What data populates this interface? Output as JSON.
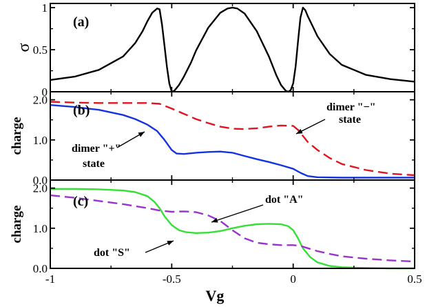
{
  "chart_data": {
    "type": "line",
    "xlabel": "Vg",
    "xlim": [
      -1,
      0.5
    ],
    "xticks": [
      "-1",
      "-0.5",
      "0",
      "0.5"
    ],
    "panels": [
      {
        "label": "(a)",
        "ylabel": "σ",
        "ylim": [
          0,
          1.05
        ],
        "yticks": [
          "0",
          "0.5",
          "1"
        ],
        "series": [
          {
            "color": "#000000",
            "dash": "solid",
            "x": [
              -1.0,
              -0.9,
              -0.8,
              -0.7,
              -0.65,
              -0.62,
              -0.6,
              -0.58,
              -0.56,
              -0.55,
              -0.54,
              -0.53,
              -0.52,
              -0.51,
              -0.5,
              -0.49,
              -0.47,
              -0.45,
              -0.42,
              -0.4,
              -0.35,
              -0.3,
              -0.27,
              -0.25,
              -0.23,
              -0.2,
              -0.15,
              -0.1,
              -0.07,
              -0.05,
              -0.03,
              -0.02,
              -0.01,
              0.0,
              0.01,
              0.02,
              0.03,
              0.04,
              0.05,
              0.06,
              0.08,
              0.1,
              0.15,
              0.2,
              0.3,
              0.4,
              0.5
            ],
            "y": [
              0.14,
              0.18,
              0.26,
              0.42,
              0.58,
              0.72,
              0.84,
              0.94,
              0.99,
              0.98,
              0.8,
              0.55,
              0.3,
              0.1,
              0.0,
              0.01,
              0.08,
              0.18,
              0.35,
              0.49,
              0.76,
              0.94,
              0.99,
              1.0,
              0.99,
              0.93,
              0.72,
              0.42,
              0.2,
              0.08,
              0.01,
              0.0,
              0.02,
              0.1,
              0.3,
              0.6,
              0.88,
              1.0,
              0.97,
              0.9,
              0.78,
              0.66,
              0.45,
              0.32,
              0.2,
              0.15,
              0.12
            ]
          }
        ]
      },
      {
        "label": "(b)",
        "ylabel": "charge",
        "ylim": [
          0,
          2.2
        ],
        "yticks": [
          "0.0",
          "1.0",
          "2.0"
        ],
        "series": [
          {
            "color": "#e0141e",
            "dash": "dashed",
            "x": [
              -1.0,
              -0.9,
              -0.8,
              -0.7,
              -0.6,
              -0.55,
              -0.5,
              -0.45,
              -0.4,
              -0.35,
              -0.3,
              -0.25,
              -0.2,
              -0.15,
              -0.1,
              -0.05,
              0.0,
              0.02,
              0.04,
              0.06,
              0.1,
              0.15,
              0.2,
              0.3,
              0.4,
              0.5
            ],
            "y": [
              1.95,
              1.93,
              1.92,
              1.92,
              1.92,
              1.9,
              1.78,
              1.65,
              1.52,
              1.42,
              1.33,
              1.28,
              1.27,
              1.29,
              1.33,
              1.36,
              1.35,
              1.25,
              1.1,
              0.95,
              0.75,
              0.55,
              0.4,
              0.25,
              0.16,
              0.12
            ]
          },
          {
            "color": "#1432e0",
            "dash": "solid",
            "x": [
              -1.0,
              -0.9,
              -0.8,
              -0.7,
              -0.65,
              -0.6,
              -0.56,
              -0.53,
              -0.5,
              -0.48,
              -0.45,
              -0.4,
              -0.35,
              -0.3,
              -0.25,
              -0.2,
              -0.15,
              -0.1,
              -0.05,
              0.0,
              0.03,
              0.06,
              0.1,
              0.2,
              0.3,
              0.4,
              0.5
            ],
            "y": [
              1.87,
              1.82,
              1.75,
              1.62,
              1.52,
              1.38,
              1.22,
              1.0,
              0.75,
              0.66,
              0.65,
              0.68,
              0.7,
              0.71,
              0.68,
              0.6,
              0.52,
              0.45,
              0.37,
              0.28,
              0.18,
              0.1,
              0.07,
              0.06,
              0.06,
              0.06,
              0.06
            ]
          }
        ],
        "annotations": [
          {
            "lines": [
              "dimer \"+\"",
              "state"
            ]
          },
          {
            "lines": [
              "dimer \"−\"",
              "state"
            ]
          }
        ]
      },
      {
        "label": "(c)",
        "ylabel": "charge",
        "ylim": [
          0,
          2.2
        ],
        "yticks": [
          "0.0",
          "1.0",
          "2.0"
        ],
        "series": [
          {
            "color": "#33e033",
            "dash": "solid",
            "x": [
              -1.0,
              -0.9,
              -0.8,
              -0.7,
              -0.65,
              -0.6,
              -0.57,
              -0.55,
              -0.53,
              -0.5,
              -0.47,
              -0.44,
              -0.4,
              -0.35,
              -0.3,
              -0.25,
              -0.2,
              -0.15,
              -0.1,
              -0.05,
              -0.02,
              0.0,
              0.02,
              0.04,
              0.07,
              0.1,
              0.15,
              0.2,
              0.3,
              0.4,
              0.5
            ],
            "y": [
              1.98,
              1.98,
              1.97,
              1.94,
              1.9,
              1.8,
              1.65,
              1.5,
              1.3,
              1.08,
              0.95,
              0.9,
              0.88,
              0.89,
              0.93,
              1.0,
              1.06,
              1.1,
              1.11,
              1.1,
              1.05,
              0.95,
              0.75,
              0.5,
              0.28,
              0.15,
              0.06,
              0.03,
              0.01,
              0.0,
              0.0
            ]
          },
          {
            "color": "#9933cc",
            "dash": "dashed",
            "x": [
              -1.0,
              -0.9,
              -0.8,
              -0.7,
              -0.6,
              -0.55,
              -0.5,
              -0.45,
              -0.4,
              -0.35,
              -0.3,
              -0.25,
              -0.2,
              -0.15,
              -0.1,
              -0.05,
              0.0,
              0.03,
              0.05,
              0.1,
              0.15,
              0.2,
              0.3,
              0.4,
              0.5
            ],
            "y": [
              1.82,
              1.76,
              1.68,
              1.6,
              1.5,
              1.44,
              1.41,
              1.42,
              1.4,
              1.32,
              1.18,
              0.95,
              0.75,
              0.64,
              0.6,
              0.58,
              0.58,
              0.56,
              0.52,
              0.43,
              0.36,
              0.3,
              0.24,
              0.2,
              0.17
            ]
          }
        ],
        "annotations": [
          {
            "lines": [
              "dot \"A\""
            ]
          },
          {
            "lines": [
              "dot \"S\""
            ]
          }
        ]
      }
    ]
  }
}
